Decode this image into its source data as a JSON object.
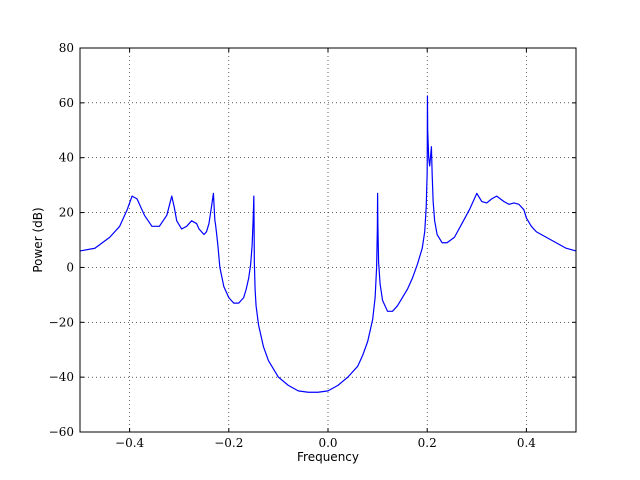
{
  "chart_data": {
    "type": "line",
    "title": "",
    "xlabel": "Frequency",
    "ylabel": "Power (dB)",
    "xlim": [
      -0.5,
      0.5
    ],
    "ylim": [
      -60,
      80
    ],
    "grid": true,
    "grid_style": "dotted",
    "xticks": [
      -0.4,
      -0.2,
      0.0,
      0.2,
      0.4
    ],
    "xtick_labels": [
      "−0.4",
      "−0.2",
      "0.0",
      "0.2",
      "0.4"
    ],
    "yticks": [
      -60,
      -40,
      -20,
      0,
      20,
      40,
      60,
      80
    ],
    "ytick_labels": [
      "−60",
      "−40",
      "−20",
      "0",
      "20",
      "40",
      "60",
      "80"
    ],
    "series": [
      {
        "color": "#0000ff",
        "x": [
          -0.5,
          -0.47,
          -0.44,
          -0.42,
          -0.405,
          -0.395,
          -0.385,
          -0.37,
          -0.355,
          -0.34,
          -0.325,
          -0.315,
          -0.31,
          -0.305,
          -0.295,
          -0.285,
          -0.275,
          -0.265,
          -0.26,
          -0.25,
          -0.245,
          -0.24,
          -0.235,
          -0.231,
          -0.229,
          -0.228,
          -0.227,
          -0.225,
          -0.222,
          -0.218,
          -0.21,
          -0.2,
          -0.19,
          -0.18,
          -0.17,
          -0.165,
          -0.16,
          -0.156,
          -0.153,
          -0.151,
          -0.1495,
          -0.149,
          -0.1485,
          -0.147,
          -0.145,
          -0.14,
          -0.13,
          -0.12,
          -0.1,
          -0.08,
          -0.06,
          -0.04,
          -0.02,
          0.0,
          0.02,
          0.04,
          0.06,
          0.07,
          0.08,
          0.09,
          0.095,
          0.098,
          0.0995,
          0.1,
          0.1005,
          0.102,
          0.105,
          0.11,
          0.12,
          0.13,
          0.14,
          0.15,
          0.16,
          0.17,
          0.18,
          0.19,
          0.195,
          0.198,
          0.2,
          0.2005,
          0.201,
          0.203,
          0.205,
          0.207,
          0.2085,
          0.21,
          0.212,
          0.215,
          0.22,
          0.23,
          0.24,
          0.255,
          0.27,
          0.285,
          0.3,
          0.31,
          0.32,
          0.33,
          0.34,
          0.355,
          0.365,
          0.375,
          0.385,
          0.395,
          0.4,
          0.41,
          0.42,
          0.44,
          0.46,
          0.48,
          0.5
        ],
        "y": [
          6,
          7,
          11,
          15,
          21,
          26,
          25,
          19,
          15,
          15,
          19,
          26,
          22,
          17,
          14,
          15,
          17,
          16,
          14,
          12,
          13,
          16,
          22,
          27,
          20,
          17,
          16,
          13,
          8,
          0,
          -7,
          -11,
          -13,
          -13,
          -11,
          -8,
          -4,
          1,
          8,
          17,
          26,
          15,
          2,
          -8,
          -14,
          -21,
          -29,
          -34,
          -40,
          -43,
          -45,
          -45.5,
          -45.5,
          -45,
          -43,
          -40,
          -36,
          -32,
          -27,
          -19,
          -11,
          0,
          14,
          27,
          16,
          2,
          -6,
          -12,
          -16,
          -16,
          -14,
          -11,
          -8,
          -4,
          1,
          7,
          13,
          22,
          35,
          62.5,
          50,
          40,
          37,
          41,
          44,
          34,
          24,
          17,
          12,
          9,
          9,
          11,
          16,
          21,
          27,
          24,
          23.5,
          25,
          26,
          24,
          23,
          23.5,
          23,
          21,
          18,
          15,
          13,
          11,
          9,
          7,
          6
        ]
      }
    ]
  }
}
